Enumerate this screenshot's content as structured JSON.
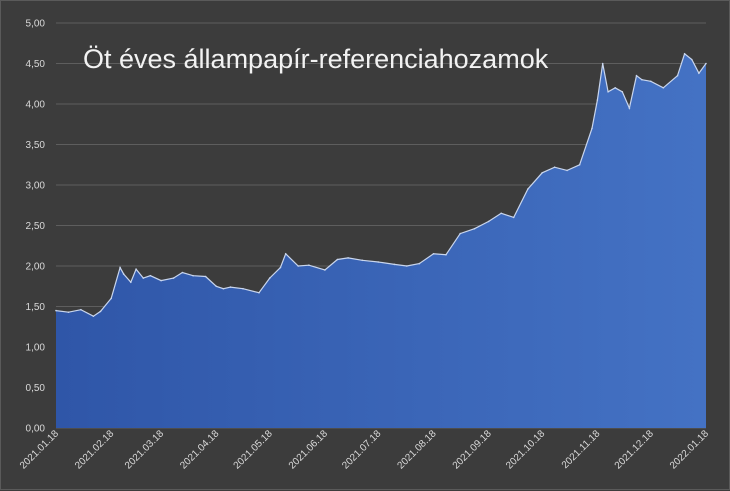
{
  "chart_data": {
    "type": "area",
    "title": "Öt éves állampapír-referenciahozamok",
    "xlabel": "",
    "ylabel": "",
    "ylim": [
      0,
      5
    ],
    "y_ticks": [
      "0,00",
      "0,50",
      "1,00",
      "1,50",
      "2,00",
      "2,50",
      "3,00",
      "3,50",
      "4,00",
      "4,50",
      "5,00"
    ],
    "x_ticks": [
      "2021.01.18",
      "2021.02.18",
      "2021.03.18",
      "2021.04.18",
      "2021.05.18",
      "2021.06.18",
      "2021.07.18",
      "2021.08.18",
      "2021.09.18",
      "2021.10.18",
      "2021.11.18",
      "2021.12.18",
      "2022.01.18"
    ],
    "grid": true,
    "colors": {
      "fill": "#4472c4",
      "line": "#c9d6ee",
      "gridline": "#5e5e5e",
      "background": "#3c3c3c"
    },
    "series": [
      {
        "x": [
          "2021.01.18",
          "2021.01.25",
          "2021.02.01",
          "2021.02.08",
          "2021.02.12",
          "2021.02.18",
          "2021.02.23",
          "2021.02.25",
          "2021.03.01",
          "2021.03.04",
          "2021.03.08",
          "2021.03.12",
          "2021.03.18",
          "2021.03.25",
          "2021.03.30",
          "2021.04.05",
          "2021.04.12",
          "2021.04.18",
          "2021.04.22",
          "2021.04.26",
          "2021.05.03",
          "2021.05.12",
          "2021.05.18",
          "2021.05.24",
          "2021.05.27",
          "2021.06.03",
          "2021.06.09",
          "2021.06.18",
          "2021.06.25",
          "2021.07.01",
          "2021.07.09",
          "2021.07.18",
          "2021.07.27",
          "2021.08.03",
          "2021.08.10",
          "2021.08.18",
          "2021.08.25",
          "2021.09.02",
          "2021.09.10",
          "2021.09.18",
          "2021.09.25",
          "2021.10.02",
          "2021.10.10",
          "2021.10.18",
          "2021.10.25",
          "2021.11.01",
          "2021.11.08",
          "2021.11.15",
          "2021.11.18",
          "2021.11.21",
          "2021.11.24",
          "2021.11.28",
          "2021.12.02",
          "2021.12.06",
          "2021.12.10",
          "2021.12.13",
          "2021.12.18",
          "2021.12.25",
          "2022.01.02",
          "2022.01.06",
          "2022.01.10",
          "2022.01.14",
          "2022.01.18"
        ],
        "values": [
          1.45,
          1.43,
          1.46,
          1.38,
          1.44,
          1.6,
          1.98,
          1.9,
          1.8,
          1.96,
          1.85,
          1.88,
          1.82,
          1.85,
          1.92,
          1.88,
          1.87,
          1.75,
          1.72,
          1.74,
          1.72,
          1.67,
          1.85,
          1.98,
          2.15,
          2.0,
          2.01,
          1.95,
          2.08,
          2.1,
          2.07,
          2.05,
          2.02,
          2.0,
          2.03,
          2.15,
          2.14,
          2.4,
          2.46,
          2.55,
          2.65,
          2.6,
          2.95,
          3.15,
          3.22,
          3.18,
          3.25,
          3.7,
          4.05,
          4.5,
          4.15,
          4.2,
          4.15,
          3.95,
          4.35,
          4.3,
          4.28,
          4.2,
          4.35,
          4.62,
          4.55,
          4.38,
          4.5
        ]
      }
    ]
  }
}
